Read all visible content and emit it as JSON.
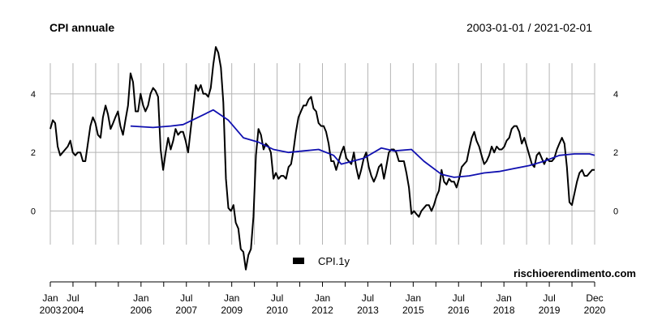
{
  "header": {
    "title": "CPI annuale",
    "date_range": "2003-01-01 / 2021-02-01"
  },
  "watermark": "rischioerendimento.com",
  "chart_data": {
    "type": "line",
    "title": "CPI annuale",
    "xlabel": "",
    "ylabel": "",
    "x_range": [
      "2003-01-01",
      "2021-02-01"
    ],
    "ylim": [
      -2.2,
      5.6
    ],
    "y_ticks": [
      0,
      2,
      4
    ],
    "grid": "vertical",
    "legend": {
      "position": "bottom-center",
      "entries": [
        "CPI.1y"
      ]
    },
    "x_ticks": [
      {
        "date": "2003-01-01",
        "month": "Jan",
        "year": "2003"
      },
      {
        "date": "2003-07-01",
        "month": "Jul",
        "year": "2004"
      },
      {
        "date": "2004-01-01",
        "month": "",
        "year": ""
      },
      {
        "date": "2004-07-01",
        "month": "",
        "year": ""
      },
      {
        "date": "2005-01-01",
        "month": "Jan",
        "year": "2006"
      },
      {
        "date": "2005-07-01",
        "month": "",
        "year": ""
      },
      {
        "date": "2006-01-01",
        "month": "Jul",
        "year": "2007"
      },
      {
        "date": "2006-07-01",
        "month": "",
        "year": ""
      },
      {
        "date": "2007-01-01",
        "month": "Jan",
        "year": "2009"
      },
      {
        "date": "2007-07-01",
        "month": "",
        "year": ""
      },
      {
        "date": "2008-01-01",
        "month": "Jul",
        "year": "2010"
      },
      {
        "date": "2008-07-01",
        "month": "",
        "year": ""
      },
      {
        "date": "2009-01-01",
        "month": "Jan",
        "year": "2012"
      },
      {
        "date": "2009-07-01",
        "month": "",
        "year": ""
      },
      {
        "date": "2010-01-01",
        "month": "Jul",
        "year": "2013"
      },
      {
        "date": "2010-07-01",
        "month": "",
        "year": ""
      },
      {
        "date": "2011-01-01",
        "month": "Jan",
        "year": "2015"
      },
      {
        "date": "2011-07-01",
        "month": "",
        "year": ""
      },
      {
        "date": "2012-01-01",
        "month": "Jul",
        "year": "2016"
      },
      {
        "date": "2012-07-01",
        "month": "",
        "year": ""
      },
      {
        "date": "2013-01-01",
        "month": "Jan",
        "year": "2018"
      },
      {
        "date": "2013-07-01",
        "month": "",
        "year": ""
      },
      {
        "date": "2014-01-01",
        "month": "Jul",
        "year": "2019"
      },
      {
        "date": "2014-07-01",
        "month": "",
        "year": ""
      },
      {
        "date": "2015-01-01",
        "month": "Dec",
        "year": "2020"
      }
    ],
    "series": [
      {
        "name": "CPI.1y",
        "color": "#000000",
        "points": [
          [
            "2003-01-01",
            2.8
          ],
          [
            "2003-02-01",
            3.1
          ],
          [
            "2003-03-01",
            3.0
          ],
          [
            "2003-04-01",
            2.2
          ],
          [
            "2003-05-01",
            1.9
          ],
          [
            "2003-06-01",
            2.0
          ],
          [
            "2003-07-01",
            2.1
          ],
          [
            "2003-08-01",
            2.2
          ],
          [
            "2003-09-01",
            2.4
          ],
          [
            "2003-10-01",
            2.0
          ],
          [
            "2003-11-01",
            1.9
          ],
          [
            "2003-12-01",
            2.0
          ],
          [
            "2004-01-01",
            2.0
          ],
          [
            "2004-02-01",
            1.7
          ],
          [
            "2004-03-01",
            1.7
          ],
          [
            "2004-04-01",
            2.3
          ],
          [
            "2004-05-01",
            2.9
          ],
          [
            "2004-06-01",
            3.2
          ],
          [
            "2004-07-01",
            3.0
          ],
          [
            "2004-08-01",
            2.6
          ],
          [
            "2004-09-01",
            2.5
          ],
          [
            "2004-10-01",
            3.2
          ],
          [
            "2004-11-01",
            3.6
          ],
          [
            "2004-12-01",
            3.3
          ],
          [
            "2005-01-01",
            2.8
          ],
          [
            "2005-02-01",
            3.0
          ],
          [
            "2005-03-01",
            3.2
          ],
          [
            "2005-04-01",
            3.4
          ],
          [
            "2005-05-01",
            2.9
          ],
          [
            "2005-06-01",
            2.6
          ],
          [
            "2005-07-01",
            3.1
          ],
          [
            "2005-08-01",
            3.6
          ],
          [
            "2005-09-01",
            4.7
          ],
          [
            "2005-10-01",
            4.4
          ],
          [
            "2005-11-01",
            3.4
          ],
          [
            "2005-12-01",
            3.4
          ],
          [
            "2006-01-01",
            4.0
          ],
          [
            "2006-02-01",
            3.6
          ],
          [
            "2006-03-01",
            3.4
          ],
          [
            "2006-04-01",
            3.6
          ],
          [
            "2006-05-01",
            4.0
          ],
          [
            "2006-06-01",
            4.2
          ],
          [
            "2006-07-01",
            4.1
          ],
          [
            "2006-08-01",
            3.9
          ],
          [
            "2006-09-01",
            2.1
          ],
          [
            "2006-10-01",
            1.4
          ],
          [
            "2006-11-01",
            2.0
          ],
          [
            "2006-12-01",
            2.5
          ],
          [
            "2007-01-01",
            2.1
          ],
          [
            "2007-02-01",
            2.4
          ],
          [
            "2007-03-01",
            2.8
          ],
          [
            "2007-04-01",
            2.6
          ],
          [
            "2007-05-01",
            2.7
          ],
          [
            "2007-06-01",
            2.7
          ],
          [
            "2007-07-01",
            2.4
          ],
          [
            "2007-08-01",
            2.0
          ],
          [
            "2007-09-01",
            2.8
          ],
          [
            "2007-10-01",
            3.5
          ],
          [
            "2007-11-01",
            4.3
          ],
          [
            "2007-12-01",
            4.1
          ],
          [
            "2008-01-01",
            4.3
          ],
          [
            "2008-02-01",
            4.0
          ],
          [
            "2008-03-01",
            4.0
          ],
          [
            "2008-04-01",
            3.9
          ],
          [
            "2008-05-01",
            4.2
          ],
          [
            "2008-06-01",
            5.0
          ],
          [
            "2008-07-01",
            5.6
          ],
          [
            "2008-08-01",
            5.4
          ],
          [
            "2008-09-01",
            4.9
          ],
          [
            "2008-10-01",
            3.7
          ],
          [
            "2008-11-01",
            1.1
          ],
          [
            "2008-12-01",
            0.1
          ],
          [
            "2009-01-01",
            0.0
          ],
          [
            "2009-02-01",
            0.2
          ],
          [
            "2009-03-01",
            -0.4
          ],
          [
            "2009-04-01",
            -0.6
          ],
          [
            "2009-05-01",
            -1.3
          ],
          [
            "2009-06-01",
            -1.4
          ],
          [
            "2009-07-01",
            -2.0
          ],
          [
            "2009-08-01",
            -1.5
          ],
          [
            "2009-09-01",
            -1.3
          ],
          [
            "2009-10-01",
            -0.2
          ],
          [
            "2009-11-01",
            1.9
          ],
          [
            "2009-12-01",
            2.8
          ],
          [
            "2010-01-01",
            2.6
          ],
          [
            "2010-02-01",
            2.1
          ],
          [
            "2010-03-01",
            2.3
          ],
          [
            "2010-04-01",
            2.2
          ],
          [
            "2010-05-01",
            2.0
          ],
          [
            "2010-06-01",
            1.1
          ],
          [
            "2010-07-01",
            1.3
          ],
          [
            "2010-08-01",
            1.1
          ],
          [
            "2010-09-01",
            1.2
          ],
          [
            "2010-10-01",
            1.2
          ],
          [
            "2010-11-01",
            1.1
          ],
          [
            "2010-12-01",
            1.5
          ],
          [
            "2011-01-01",
            1.6
          ],
          [
            "2011-02-01",
            2.1
          ],
          [
            "2011-03-01",
            2.7
          ],
          [
            "2011-04-01",
            3.2
          ],
          [
            "2011-05-01",
            3.4
          ],
          [
            "2011-06-01",
            3.6
          ],
          [
            "2011-07-01",
            3.6
          ],
          [
            "2011-08-01",
            3.8
          ],
          [
            "2011-09-01",
            3.9
          ],
          [
            "2011-10-01",
            3.5
          ],
          [
            "2011-11-01",
            3.4
          ],
          [
            "2011-12-01",
            3.0
          ],
          [
            "2012-01-01",
            2.9
          ],
          [
            "2012-02-01",
            2.9
          ],
          [
            "2012-03-01",
            2.7
          ],
          [
            "2012-04-01",
            2.3
          ],
          [
            "2012-05-01",
            1.7
          ],
          [
            "2012-06-01",
            1.7
          ],
          [
            "2012-07-01",
            1.4
          ],
          [
            "2012-08-01",
            1.7
          ],
          [
            "2012-09-01",
            2.0
          ],
          [
            "2012-10-01",
            2.2
          ],
          [
            "2012-11-01",
            1.8
          ],
          [
            "2012-12-01",
            1.7
          ],
          [
            "2013-01-01",
            1.6
          ],
          [
            "2013-02-01",
            2.0
          ],
          [
            "2013-03-01",
            1.5
          ],
          [
            "2013-04-01",
            1.1
          ],
          [
            "2013-05-01",
            1.4
          ],
          [
            "2013-06-01",
            1.8
          ],
          [
            "2013-07-01",
            2.0
          ],
          [
            "2013-08-01",
            1.5
          ],
          [
            "2013-09-01",
            1.2
          ],
          [
            "2013-10-01",
            1.0
          ],
          [
            "2013-11-01",
            1.2
          ],
          [
            "2013-12-01",
            1.5
          ],
          [
            "2014-01-01",
            1.6
          ],
          [
            "2014-02-01",
            1.1
          ],
          [
            "2014-03-01",
            1.5
          ],
          [
            "2014-04-01",
            2.0
          ],
          [
            "2014-05-01",
            2.1
          ],
          [
            "2014-06-01",
            2.1
          ],
          [
            "2014-07-01",
            2.0
          ],
          [
            "2014-08-01",
            1.7
          ],
          [
            "2014-09-01",
            1.7
          ],
          [
            "2014-10-01",
            1.7
          ],
          [
            "2014-11-01",
            1.3
          ],
          [
            "2014-12-01",
            0.8
          ],
          [
            "2015-01-01",
            -0.1
          ],
          [
            "2015-02-01",
            0.0
          ],
          [
            "2015-03-01",
            -0.1
          ],
          [
            "2015-04-01",
            -0.2
          ],
          [
            "2015-05-01",
            0.0
          ],
          [
            "2015-06-01",
            0.1
          ],
          [
            "2015-07-01",
            0.2
          ],
          [
            "2015-08-01",
            0.2
          ],
          [
            "2015-09-01",
            0.0
          ],
          [
            "2015-10-01",
            0.2
          ],
          [
            "2015-11-01",
            0.5
          ],
          [
            "2015-12-01",
            0.7
          ],
          [
            "2016-01-01",
            1.4
          ],
          [
            "2016-02-01",
            1.0
          ],
          [
            "2016-03-01",
            0.9
          ],
          [
            "2016-04-01",
            1.1
          ],
          [
            "2016-05-01",
            1.0
          ],
          [
            "2016-06-01",
            1.0
          ],
          [
            "2016-07-01",
            0.8
          ],
          [
            "2016-08-01",
            1.1
          ],
          [
            "2016-09-01",
            1.5
          ],
          [
            "2016-10-01",
            1.6
          ],
          [
            "2016-11-01",
            1.7
          ],
          [
            "2016-12-01",
            2.1
          ],
          [
            "2017-01-01",
            2.5
          ],
          [
            "2017-02-01",
            2.7
          ],
          [
            "2017-03-01",
            2.4
          ],
          [
            "2017-04-01",
            2.2
          ],
          [
            "2017-05-01",
            1.9
          ],
          [
            "2017-06-01",
            1.6
          ],
          [
            "2017-07-01",
            1.7
          ],
          [
            "2017-08-01",
            1.9
          ],
          [
            "2017-09-01",
            2.2
          ],
          [
            "2017-10-01",
            2.0
          ],
          [
            "2017-11-01",
            2.2
          ],
          [
            "2017-12-01",
            2.1
          ],
          [
            "2018-01-01",
            2.1
          ],
          [
            "2018-02-01",
            2.2
          ],
          [
            "2018-03-01",
            2.4
          ],
          [
            "2018-04-01",
            2.5
          ],
          [
            "2018-05-01",
            2.8
          ],
          [
            "2018-06-01",
            2.9
          ],
          [
            "2018-07-01",
            2.9
          ],
          [
            "2018-08-01",
            2.7
          ],
          [
            "2018-09-01",
            2.3
          ],
          [
            "2018-10-01",
            2.5
          ],
          [
            "2018-11-01",
            2.2
          ],
          [
            "2018-12-01",
            1.9
          ],
          [
            "2019-01-01",
            1.6
          ],
          [
            "2019-02-01",
            1.5
          ],
          [
            "2019-03-01",
            1.9
          ],
          [
            "2019-04-01",
            2.0
          ],
          [
            "2019-05-01",
            1.8
          ],
          [
            "2019-06-01",
            1.6
          ],
          [
            "2019-07-01",
            1.8
          ],
          [
            "2019-08-01",
            1.7
          ],
          [
            "2019-09-01",
            1.7
          ],
          [
            "2019-10-01",
            1.8
          ],
          [
            "2019-11-01",
            2.1
          ],
          [
            "2019-12-01",
            2.3
          ],
          [
            "2020-01-01",
            2.5
          ],
          [
            "2020-02-01",
            2.3
          ],
          [
            "2020-03-01",
            1.5
          ],
          [
            "2020-04-01",
            0.3
          ],
          [
            "2020-05-01",
            0.2
          ],
          [
            "2020-06-01",
            0.6
          ],
          [
            "2020-07-01",
            1.0
          ],
          [
            "2020-08-01",
            1.3
          ],
          [
            "2020-09-01",
            1.4
          ],
          [
            "2020-10-01",
            1.2
          ],
          [
            "2020-11-01",
            1.2
          ],
          [
            "2020-12-01",
            1.3
          ],
          [
            "2021-01-01",
            1.4
          ],
          [
            "2021-02-01",
            1.4
          ]
        ]
      },
      {
        "name": "",
        "color": "#1010b0",
        "points": [
          [
            "2005-09-01",
            2.9
          ],
          [
            "2006-06-01",
            2.85
          ],
          [
            "2007-01-01",
            2.9
          ],
          [
            "2007-06-01",
            2.95
          ],
          [
            "2007-12-01",
            3.2
          ],
          [
            "2008-06-01",
            3.45
          ],
          [
            "2008-12-01",
            3.1
          ],
          [
            "2009-06-01",
            2.5
          ],
          [
            "2009-12-01",
            2.35
          ],
          [
            "2010-06-01",
            2.1
          ],
          [
            "2010-12-01",
            2.0
          ],
          [
            "2011-06-01",
            2.05
          ],
          [
            "2011-12-01",
            2.1
          ],
          [
            "2012-06-01",
            1.9
          ],
          [
            "2012-09-01",
            1.6
          ],
          [
            "2013-06-01",
            1.8
          ],
          [
            "2014-01-01",
            2.15
          ],
          [
            "2014-06-01",
            2.05
          ],
          [
            "2015-01-01",
            2.1
          ],
          [
            "2015-06-01",
            1.7
          ],
          [
            "2016-01-01",
            1.25
          ],
          [
            "2016-06-01",
            1.15
          ],
          [
            "2016-12-01",
            1.2
          ],
          [
            "2017-06-01",
            1.3
          ],
          [
            "2017-12-01",
            1.35
          ],
          [
            "2018-06-01",
            1.45
          ],
          [
            "2018-12-01",
            1.55
          ],
          [
            "2019-06-01",
            1.7
          ],
          [
            "2019-12-01",
            1.9
          ],
          [
            "2020-06-01",
            1.95
          ],
          [
            "2020-12-01",
            1.95
          ],
          [
            "2021-02-01",
            1.9
          ]
        ]
      }
    ]
  }
}
